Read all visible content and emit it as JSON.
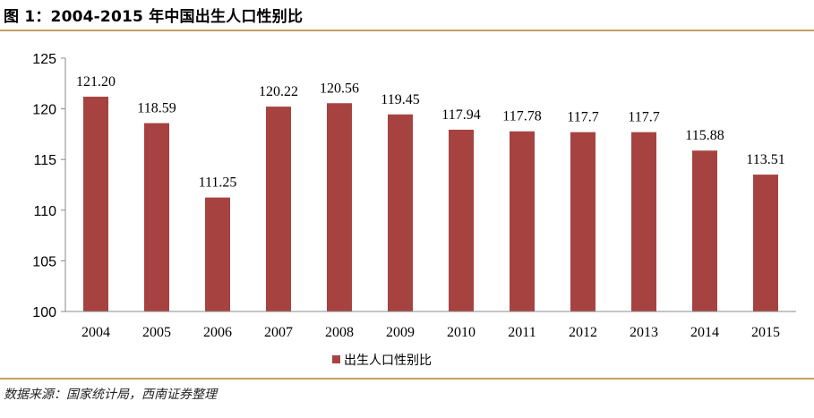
{
  "figure": {
    "title": "图 1：2004-2015 年中国出生人口性别比",
    "source": "数据来源：国家统计局，西南证券整理"
  },
  "chart_data": {
    "type": "bar",
    "categories": [
      "2004",
      "2005",
      "2006",
      "2007",
      "2008",
      "2009",
      "2010",
      "2011",
      "2012",
      "2013",
      "2014",
      "2015"
    ],
    "series": [
      {
        "name": "出生人口性别比",
        "values": [
          121.2,
          118.59,
          111.25,
          120.22,
          120.56,
          119.45,
          117.94,
          117.78,
          117.7,
          117.7,
          115.88,
          113.51
        ],
        "labels": [
          "121.20",
          "118.59",
          "111.25",
          "120.22",
          "120.56",
          "119.45",
          "117.94",
          "117.78",
          "117.7",
          "117.7",
          "115.88",
          "113.51"
        ],
        "color": "#a64341"
      }
    ],
    "ylim": [
      100,
      125
    ],
    "yticks": [
      "100",
      "105",
      "110",
      "115",
      "120",
      "125"
    ],
    "grid": false,
    "legend": "bottom-left"
  }
}
